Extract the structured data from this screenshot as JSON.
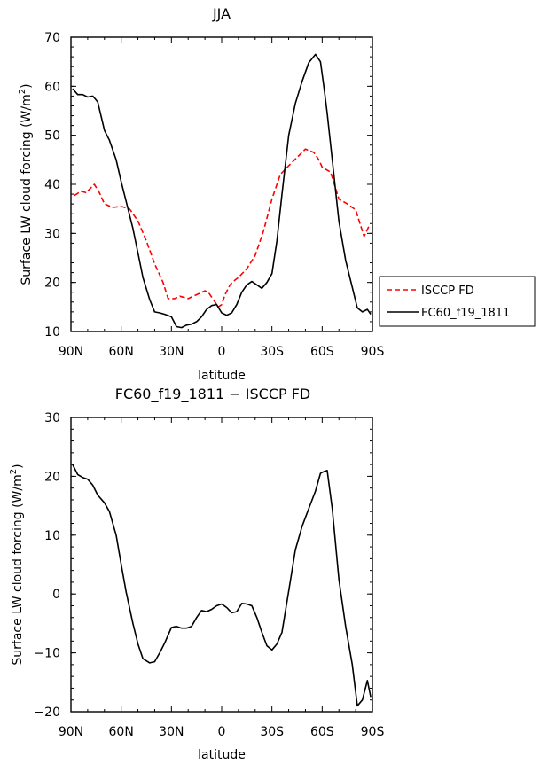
{
  "chart_data": [
    {
      "type": "line",
      "title": "JJA",
      "xlabel": "latitude",
      "ylabel": "Surface LW cloud forcing (W/m²)",
      "ylabel_main": "Surface LW cloud forcing (W/m",
      "ylabel_sup": "2",
      "ylabel_end": ")",
      "xlim": [
        -90,
        90
      ],
      "ylim": [
        10,
        70
      ],
      "x_ticks": [
        -90,
        -60,
        -30,
        0,
        30,
        60,
        90
      ],
      "x_tick_labels": [
        "90N",
        "60N",
        "30N",
        "0",
        "30S",
        "60S",
        "90S"
      ],
      "y_ticks": [
        10,
        20,
        30,
        40,
        50,
        60,
        70
      ],
      "y_tick_labels": [
        "10",
        "20",
        "30",
        "40",
        "50",
        "60",
        "70"
      ],
      "legend": "right-bottom",
      "series": [
        {
          "name": "ISCCP FD",
          "color": "#ff0000",
          "dash": "dashed",
          "x": [
            -88,
            -84,
            -81,
            -76,
            -73,
            -70,
            -65,
            -60,
            -55,
            -50,
            -45,
            -40,
            -35,
            -32,
            -28,
            -25,
            -20,
            -15,
            -10,
            -8,
            -5,
            -2,
            0,
            2,
            5,
            8,
            10,
            15,
            20,
            25,
            30,
            35,
            40,
            45,
            50,
            55,
            58,
            60,
            65,
            70,
            75,
            80,
            85,
            88
          ],
          "y": [
            37.7,
            38.6,
            38.3,
            40.0,
            38.3,
            36.0,
            35.3,
            35.5,
            35.0,
            32.5,
            28.5,
            23.8,
            20.0,
            16.7,
            16.7,
            17.2,
            16.7,
            17.5,
            18.3,
            18.0,
            16.5,
            15.0,
            15.5,
            17.5,
            19.5,
            20.5,
            21.0,
            22.8,
            25.5,
            30.5,
            37.0,
            42.0,
            43.8,
            45.5,
            47.2,
            46.5,
            45.0,
            43.5,
            42.5,
            37.0,
            36.0,
            34.8,
            29.4,
            31.5
          ]
        },
        {
          "name": "FC60_f19_1811",
          "color": "#000000",
          "dash": "solid",
          "x": [
            -89,
            -86,
            -83,
            -80,
            -77,
            -74,
            -70,
            -67,
            -63,
            -60,
            -57,
            -53,
            -50,
            -47,
            -43,
            -40,
            -37,
            -34,
            -30,
            -27,
            -24,
            -21,
            -18,
            -15,
            -12,
            -9,
            -6,
            -3,
            0,
            3,
            6,
            9,
            12,
            15,
            18,
            21,
            24,
            27,
            30,
            33,
            36,
            40,
            44,
            48,
            52,
            56,
            59,
            61,
            63,
            66,
            70,
            74,
            78,
            81,
            84,
            87,
            89
          ],
          "y": [
            59.5,
            58.3,
            58.3,
            57.8,
            58.0,
            56.8,
            51.0,
            49.0,
            45.0,
            40.5,
            36.5,
            31.0,
            26.0,
            21.0,
            16.5,
            14.0,
            13.8,
            13.5,
            13.0,
            11.0,
            10.8,
            11.3,
            11.5,
            12.0,
            13.0,
            14.5,
            15.3,
            15.5,
            13.8,
            13.3,
            13.8,
            15.5,
            18.0,
            19.5,
            20.2,
            19.5,
            18.8,
            20.0,
            21.8,
            28.5,
            38.0,
            50.0,
            56.5,
            61.0,
            64.8,
            66.5,
            65.0,
            60.0,
            54.5,
            45.0,
            32.5,
            24.5,
            19.0,
            14.8,
            14.0,
            14.5,
            13.5
          ]
        }
      ],
      "legend_entries": [
        "ISCCP FD",
        "FC60_f19_1811"
      ]
    },
    {
      "type": "line",
      "title": "FC60_f19_1811 − ISCCP FD",
      "xlabel": "latitude",
      "ylabel": "Surface LW cloud forcing (W/m²)",
      "ylabel_main": "Surface LW cloud forcing (W/m",
      "ylabel_sup": "2",
      "ylabel_end": ")",
      "xlim": [
        -90,
        90
      ],
      "ylim": [
        -20,
        30
      ],
      "x_ticks": [
        -90,
        -60,
        -30,
        0,
        30,
        60,
        90
      ],
      "x_tick_labels": [
        "90N",
        "60N",
        "30N",
        "0",
        "30S",
        "60S",
        "90S"
      ],
      "y_ticks": [
        -20,
        -10,
        0,
        10,
        20,
        30
      ],
      "y_tick_labels": [
        "−20",
        "−10",
        "0",
        "10",
        "20",
        "30"
      ],
      "series": [
        {
          "color": "#000000",
          "dash": "solid",
          "x": [
            -89,
            -86,
            -83,
            -80,
            -77,
            -74,
            -70,
            -67,
            -63,
            -60,
            -57,
            -53,
            -50,
            -47,
            -43,
            -40,
            -37,
            -34,
            -30,
            -27,
            -24,
            -21,
            -18,
            -15,
            -12,
            -9,
            -6,
            -3,
            0,
            3,
            6,
            9,
            12,
            15,
            18,
            21,
            24,
            27,
            30,
            33,
            36,
            40,
            44,
            48,
            52,
            56,
            59,
            61,
            63,
            66,
            70,
            74,
            78,
            81,
            84,
            87,
            89
          ],
          "y": [
            22.0,
            20.3,
            19.8,
            19.5,
            18.5,
            16.8,
            15.5,
            14.0,
            10.0,
            5.0,
            0.3,
            -5.0,
            -8.5,
            -11.0,
            -11.7,
            -11.5,
            -10.0,
            -8.3,
            -5.7,
            -5.5,
            -5.8,
            -5.8,
            -5.5,
            -4.0,
            -2.8,
            -3.0,
            -2.6,
            -2.0,
            -1.7,
            -2.3,
            -3.2,
            -3.0,
            -1.6,
            -1.7,
            -2.0,
            -4.0,
            -6.5,
            -8.8,
            -9.5,
            -8.5,
            -6.5,
            0.5,
            7.5,
            11.5,
            14.5,
            17.5,
            20.5,
            20.8,
            21.0,
            14.5,
            2.5,
            -5.5,
            -12.0,
            -19.0,
            -18.0,
            -14.7,
            -17.5
          ]
        }
      ]
    }
  ]
}
